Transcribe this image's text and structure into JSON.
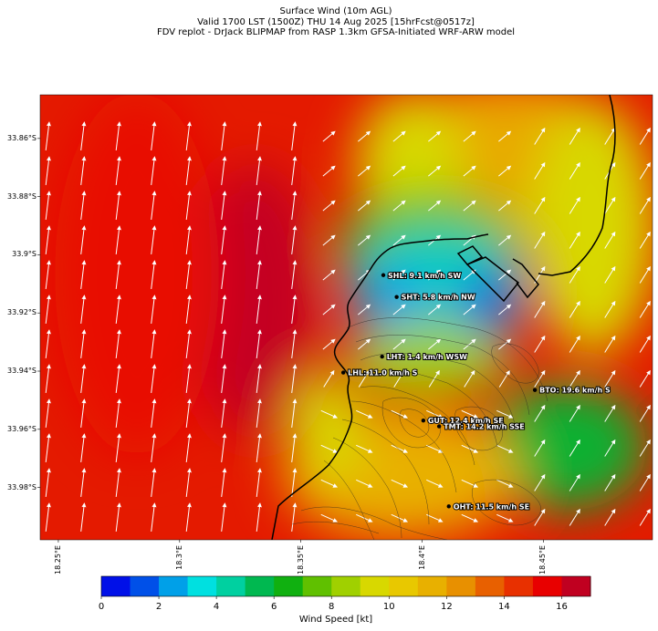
{
  "title": {
    "line1": "Surface Wind (10m AGL)",
    "line2": "Valid 1700 LST (1500Z) THU 14 Aug 2025 [15hrFcst@0517z]",
    "line3": "FDV replot - DrJack BLIPMAP from RASP 1.3km GFSA-Initiated WRF-ARW model"
  },
  "axes": {
    "y_ticks": [
      "33.86°S",
      "33.88°S",
      "33.9°S",
      "33.92°S",
      "33.94°S",
      "33.96°S",
      "33.98°S"
    ],
    "x_ticks": [
      "18.25°E",
      "18.3°E",
      "18.35°E",
      "18.4°E",
      "18.45°E"
    ],
    "lon_range": [
      18.2425,
      18.495
    ],
    "lat_range": [
      -33.845,
      -33.998
    ]
  },
  "stations": [
    {
      "id": "SHL",
      "label": "SHL: 9.1 km/h SW",
      "lon": 18.384,
      "lat": -33.907
    },
    {
      "id": "SHT",
      "label": "SHT: 5.8 km/h NW",
      "lon": 18.3895,
      "lat": -33.9145
    },
    {
      "id": "LHT",
      "label": "LHT: 1.4 km/h WSW",
      "lon": 18.3835,
      "lat": -33.935
    },
    {
      "id": "LHL",
      "label": "LHL: 11.0 km/h S",
      "lon": 18.3675,
      "lat": -33.9405
    },
    {
      "id": "BTO",
      "label": "BTO: 19.6 km/h S",
      "lon": 18.4465,
      "lat": -33.9465
    },
    {
      "id": "GUT",
      "label": "GUT: 12.4 km/h SE",
      "lon": 18.4005,
      "lat": -33.957
    },
    {
      "id": "TMT",
      "label": "TMT: 14.2 km/h SSE",
      "lon": 18.407,
      "lat": -33.959
    },
    {
      "id": "OHT",
      "label": "OHT: 11.5 km/h SE",
      "lon": 18.411,
      "lat": -33.9865
    }
  ],
  "colorbar": {
    "label": "Wind Speed [kt]",
    "ticks": [
      "0",
      "2",
      "4",
      "6",
      "8",
      "10",
      "12",
      "14",
      "16"
    ],
    "colors": [
      "#0010e8",
      "#0050e8",
      "#00a0e8",
      "#00e0e0",
      "#00d0a0",
      "#00b850",
      "#10b010",
      "#60c000",
      "#a0d000",
      "#d8d800",
      "#e8c800",
      "#e8b000",
      "#e89000",
      "#e86000",
      "#e83000",
      "#e80000",
      "#c00020"
    ]
  }
}
